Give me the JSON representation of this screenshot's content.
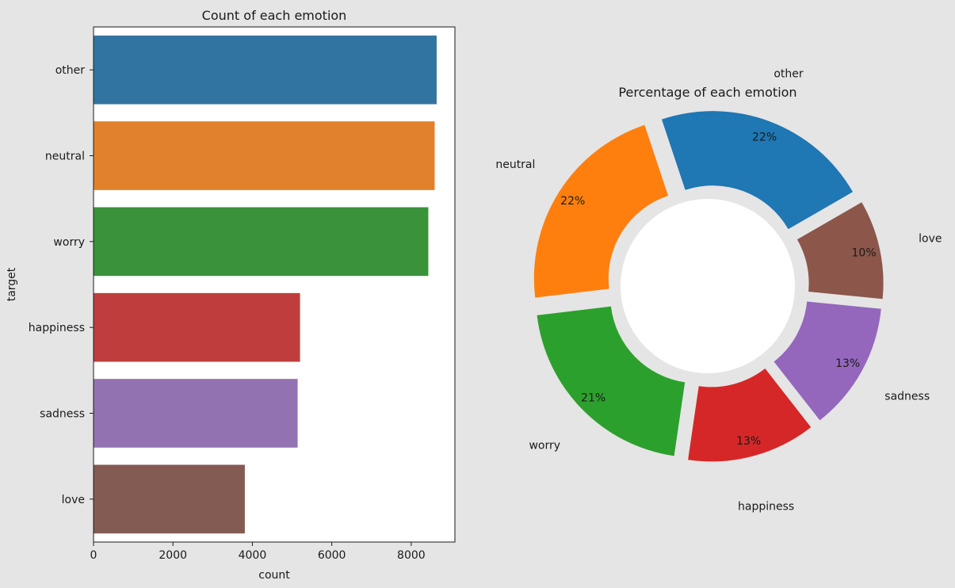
{
  "chart_data": [
    {
      "type": "bar",
      "orientation": "horizontal",
      "title": "Count of each emotion",
      "xlabel": "count",
      "ylabel": "target",
      "categories": [
        "other",
        "neutral",
        "worry",
        "happiness",
        "sadness",
        "love"
      ],
      "values": [
        8640,
        8590,
        8430,
        5200,
        5140,
        3810
      ],
      "colors": [
        "#3274a1",
        "#e1812c",
        "#3a923a",
        "#c03d3e",
        "#9372b2",
        "#845b53"
      ],
      "xlim": [
        0,
        9100
      ],
      "xticks": [
        0,
        2000,
        4000,
        6000,
        8000
      ],
      "grid": false
    },
    {
      "type": "pie",
      "donut": true,
      "exploded": true,
      "title": "Percentage of each emotion",
      "labels": [
        "other",
        "neutral",
        "worry",
        "happiness",
        "sadness",
        "love"
      ],
      "values": [
        22,
        22,
        21,
        13,
        13,
        10
      ],
      "pct_labels": [
        "22%",
        "22%",
        "21%",
        "13%",
        "13%",
        "10%"
      ],
      "colors": [
        "#1f77b4",
        "#ff7f0e",
        "#2ca02c",
        "#d62728",
        "#9467bd",
        "#8c564b"
      ]
    }
  ]
}
